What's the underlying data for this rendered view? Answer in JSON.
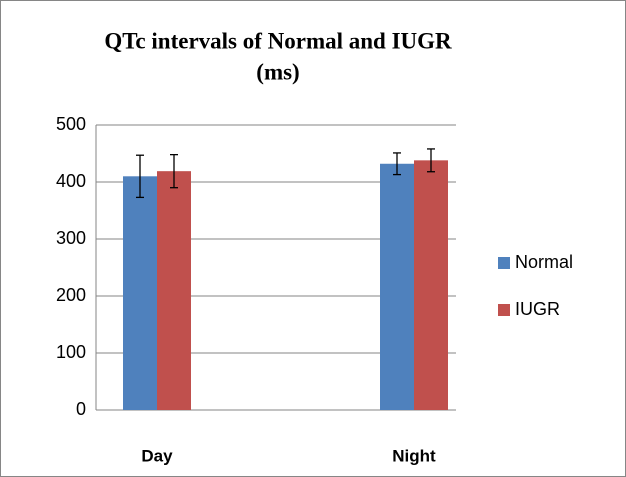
{
  "chart_data": {
    "type": "bar",
    "title": [
      "QTc intervals of Normal and IUGR",
      "(ms)"
    ],
    "categories": [
      "Day",
      "Night"
    ],
    "series": [
      {
        "name": "Normal",
        "color": "#4f81bd",
        "values": [
          410,
          432
        ],
        "errors": [
          37,
          19
        ]
      },
      {
        "name": "IUGR",
        "color": "#c0504d",
        "values": [
          419,
          438
        ],
        "errors": [
          29,
          20
        ]
      }
    ],
    "ylim": [
      0,
      500
    ],
    "yticks": [
      0,
      100,
      200,
      300,
      400,
      500
    ],
    "grid": true,
    "legend": "right"
  }
}
